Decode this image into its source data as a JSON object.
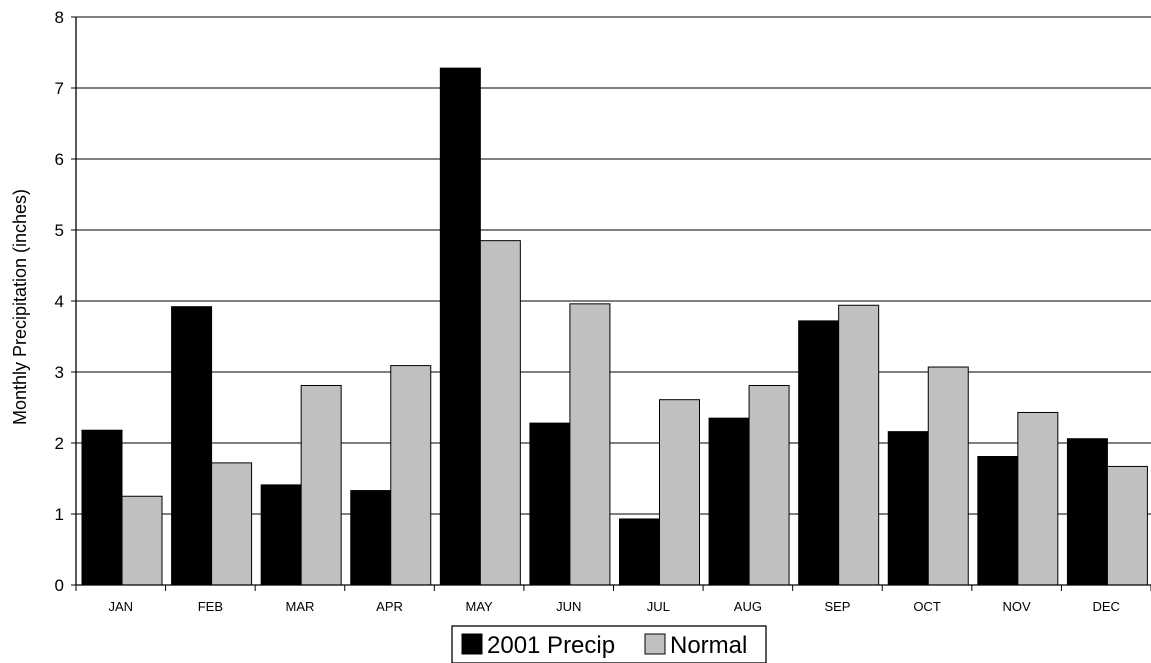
{
  "chart_data": {
    "type": "bar",
    "title": "",
    "xlabel": "",
    "ylabel": "Monthly Precipitation (inches)",
    "ylim": [
      0,
      8
    ],
    "yticks": [
      0,
      1,
      2,
      3,
      4,
      5,
      6,
      7,
      8
    ],
    "grid": true,
    "legend_position": "bottom",
    "categories": [
      "JAN",
      "FEB",
      "MAR",
      "APR",
      "MAY",
      "JUN",
      "JUL",
      "AUG",
      "SEP",
      "OCT",
      "NOV",
      "DEC"
    ],
    "series": [
      {
        "name": "2001 Precip",
        "color": "#000000",
        "values": [
          2.18,
          3.92,
          1.41,
          1.33,
          7.28,
          2.28,
          0.93,
          2.35,
          3.72,
          2.16,
          1.81,
          2.06
        ]
      },
      {
        "name": "Normal",
        "color": "#c0c0c0",
        "values": [
          1.25,
          1.72,
          2.81,
          3.09,
          4.85,
          3.96,
          2.61,
          2.81,
          3.94,
          3.07,
          2.43,
          1.67
        ]
      }
    ]
  }
}
